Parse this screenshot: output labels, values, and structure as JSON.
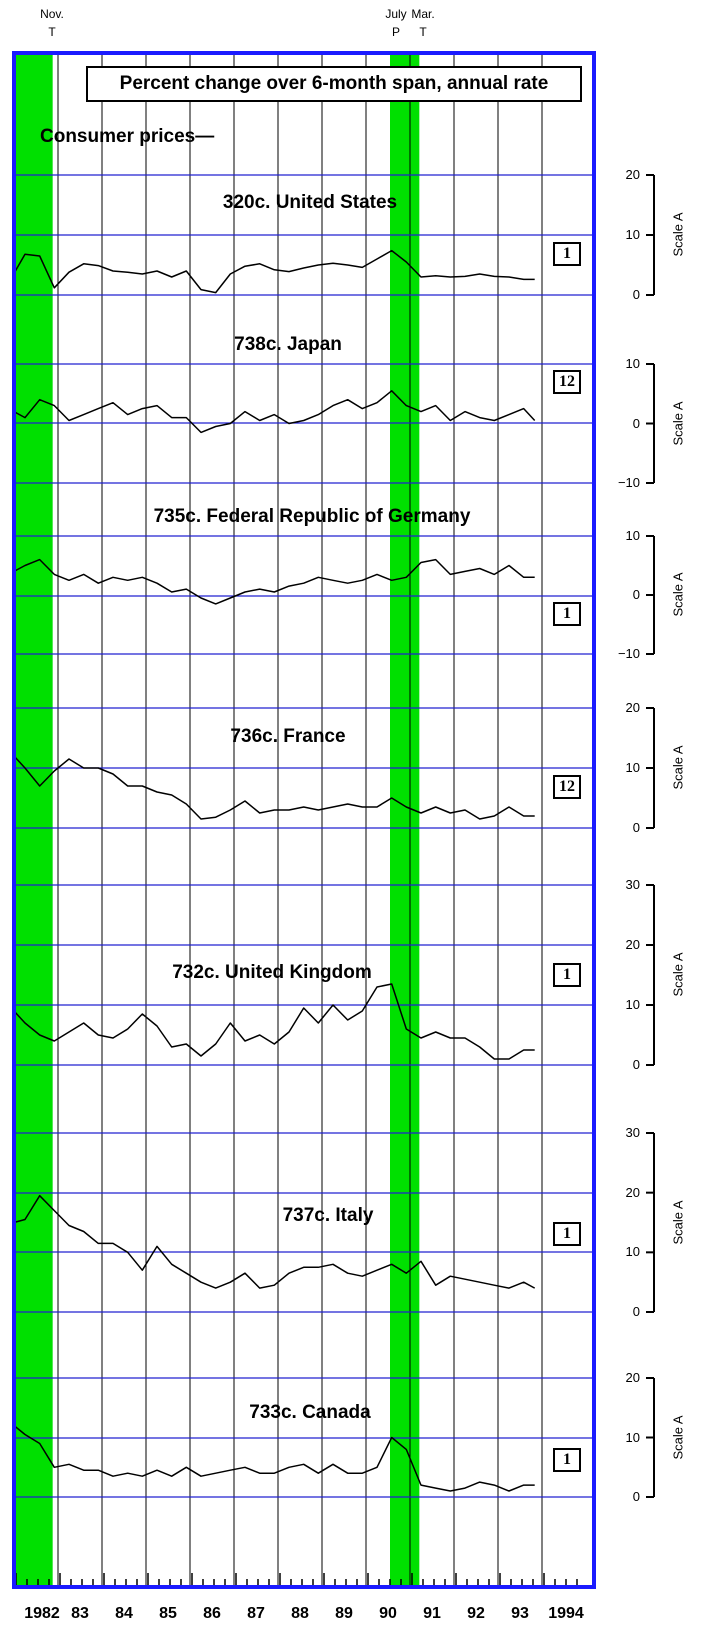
{
  "header": {
    "turns": [
      {
        "month": "Nov.",
        "type": "T"
      },
      {
        "month": "July",
        "type": "P"
      },
      {
        "month": "Mar.",
        "type": "T"
      }
    ]
  },
  "title": "Percent change over 6-month span, annual rate",
  "subtitle": "Consumer prices—",
  "colors": {
    "frame": "#1a1aff",
    "recession": "#00e000",
    "grid": "#2020d0",
    "line": "#000000"
  },
  "chart_data": {
    "type": "line",
    "x_range": [
      "1982-01",
      "1994-12"
    ],
    "x_tick_labels": [
      "1982",
      "83",
      "84",
      "85",
      "86",
      "87",
      "88",
      "89",
      "90",
      "91",
      "92",
      "93",
      "1994"
    ],
    "recessions": [
      [
        "1982-01",
        "1982-11"
      ],
      [
        "1990-07",
        "1991-03"
      ]
    ],
    "scale_label": "Scale A",
    "panels": [
      {
        "title": "320c. United States",
        "badge": "1",
        "ylim": [
          0,
          20
        ],
        "yticks": [
          "20",
          "10",
          "0"
        ],
        "x": [
          "1982-01",
          "1982-04",
          "1982-08",
          "1982-12",
          "1983-04",
          "1983-08",
          "1983-12",
          "1984-04",
          "1984-08",
          "1984-12",
          "1985-04",
          "1985-08",
          "1985-12",
          "1986-04",
          "1986-08",
          "1986-12",
          "1987-04",
          "1987-08",
          "1987-12",
          "1988-04",
          "1988-08",
          "1988-12",
          "1989-04",
          "1989-08",
          "1989-12",
          "1990-04",
          "1990-08",
          "1990-12",
          "1991-04",
          "1991-08",
          "1991-12",
          "1992-04",
          "1992-08",
          "1992-12",
          "1993-04",
          "1993-08",
          "1993-11"
        ],
        "values": [
          3.6,
          6.8,
          6.5,
          1.2,
          3.8,
          5.2,
          4.9,
          4.0,
          3.8,
          3.5,
          4.0,
          3.0,
          4.0,
          0.9,
          0.4,
          3.5,
          4.8,
          5.2,
          4.2,
          3.9,
          4.5,
          5.0,
          5.3,
          5.0,
          4.6,
          6.0,
          7.4,
          5.5,
          3.0,
          3.2,
          3.0,
          3.1,
          3.5,
          3.1,
          3.0,
          2.6,
          2.6
        ]
      },
      {
        "title": "738c. Japan",
        "badge": "12",
        "ylim": [
          -10,
          10
        ],
        "yticks": [
          "10",
          "0",
          "−10"
        ],
        "x": [
          "1982-01",
          "1982-04",
          "1982-08",
          "1982-12",
          "1983-04",
          "1983-08",
          "1983-12",
          "1984-04",
          "1984-08",
          "1984-12",
          "1985-04",
          "1985-08",
          "1985-12",
          "1986-04",
          "1986-08",
          "1986-12",
          "1987-04",
          "1987-08",
          "1987-12",
          "1988-04",
          "1988-08",
          "1988-12",
          "1989-04",
          "1989-08",
          "1989-12",
          "1990-04",
          "1990-08",
          "1990-12",
          "1991-04",
          "1991-08",
          "1991-12",
          "1992-04",
          "1992-08",
          "1992-12",
          "1993-04",
          "1993-08",
          "1993-11"
        ],
        "values": [
          2.0,
          1.0,
          4.0,
          3.0,
          0.5,
          1.5,
          2.5,
          3.5,
          1.5,
          2.5,
          3.0,
          1.0,
          1.0,
          -1.5,
          -0.5,
          0.0,
          2.0,
          0.5,
          1.5,
          0.0,
          0.5,
          1.5,
          3.0,
          4.0,
          2.5,
          3.5,
          5.5,
          3.0,
          2.0,
          3.0,
          0.5,
          2.0,
          1.0,
          0.5,
          1.5,
          2.5,
          0.5
        ]
      },
      {
        "title": "735c. Federal Republic of Germany",
        "badge": "1",
        "ylim": [
          -10,
          10
        ],
        "yticks": [
          "10",
          "0",
          "−10"
        ],
        "x": [
          "1982-01",
          "1982-04",
          "1982-08",
          "1982-12",
          "1983-04",
          "1983-08",
          "1983-12",
          "1984-04",
          "1984-08",
          "1984-12",
          "1985-04",
          "1985-08",
          "1985-12",
          "1986-04",
          "1986-08",
          "1986-12",
          "1987-04",
          "1987-08",
          "1987-12",
          "1988-04",
          "1988-08",
          "1988-12",
          "1989-04",
          "1989-08",
          "1989-12",
          "1990-04",
          "1990-08",
          "1990-12",
          "1991-04",
          "1991-08",
          "1991-12",
          "1992-04",
          "1992-08",
          "1992-12",
          "1993-04",
          "1993-08",
          "1993-11"
        ],
        "values": [
          4.0,
          5.0,
          6.0,
          3.5,
          2.5,
          3.5,
          2.0,
          3.0,
          2.5,
          3.0,
          2.0,
          0.5,
          1.0,
          -0.5,
          -1.5,
          -0.5,
          0.5,
          1.0,
          0.5,
          1.5,
          2.0,
          3.0,
          2.5,
          2.0,
          2.5,
          3.5,
          2.5,
          3.0,
          5.5,
          6.0,
          3.5,
          4.0,
          4.5,
          3.5,
          5.0,
          3.0,
          3.0
        ]
      },
      {
        "title": "736c. France",
        "badge": "12",
        "ylim": [
          0,
          20
        ],
        "yticks": [
          "20",
          "10",
          "0"
        ],
        "x": [
          "1982-01",
          "1982-04",
          "1982-08",
          "1982-12",
          "1983-04",
          "1983-08",
          "1983-12",
          "1984-04",
          "1984-08",
          "1984-12",
          "1985-04",
          "1985-08",
          "1985-12",
          "1986-04",
          "1986-08",
          "1986-12",
          "1987-04",
          "1987-08",
          "1987-12",
          "1988-04",
          "1988-08",
          "1988-12",
          "1989-04",
          "1989-08",
          "1989-12",
          "1990-04",
          "1990-08",
          "1990-12",
          "1991-04",
          "1991-08",
          "1991-12",
          "1992-04",
          "1992-08",
          "1992-12",
          "1993-04",
          "1993-08",
          "1993-11"
        ],
        "values": [
          12.0,
          10.0,
          7.0,
          9.5,
          11.5,
          10.0,
          10.0,
          9.0,
          7.0,
          7.0,
          6.0,
          5.5,
          4.0,
          1.5,
          1.8,
          3.0,
          4.5,
          2.5,
          3.0,
          3.0,
          3.5,
          3.0,
          3.5,
          4.0,
          3.5,
          3.5,
          5.0,
          3.5,
          2.5,
          3.5,
          2.5,
          3.0,
          1.5,
          2.0,
          3.5,
          2.0,
          2.0
        ]
      },
      {
        "title": "732c. United Kingdom",
        "badge": "1",
        "ylim": [
          0,
          30
        ],
        "yticks": [
          "30",
          "20",
          "10",
          "0"
        ],
        "x": [
          "1982-01",
          "1982-04",
          "1982-08",
          "1982-12",
          "1983-04",
          "1983-08",
          "1983-12",
          "1984-04",
          "1984-08",
          "1984-12",
          "1985-04",
          "1985-08",
          "1985-12",
          "1986-04",
          "1986-08",
          "1986-12",
          "1987-04",
          "1987-08",
          "1987-12",
          "1988-04",
          "1988-08",
          "1988-12",
          "1989-04",
          "1989-08",
          "1989-12",
          "1990-04",
          "1990-08",
          "1990-12",
          "1991-04",
          "1991-08",
          "1991-12",
          "1992-04",
          "1992-08",
          "1992-12",
          "1993-04",
          "1993-08",
          "1993-11"
        ],
        "values": [
          9.0,
          7.0,
          5.0,
          4.0,
          5.5,
          7.0,
          5.0,
          4.5,
          6.0,
          8.5,
          6.5,
          3.0,
          3.5,
          1.5,
          3.5,
          7.0,
          4.0,
          5.0,
          3.5,
          5.5,
          9.5,
          7.0,
          10.0,
          7.5,
          9.0,
          13.0,
          13.5,
          6.0,
          4.5,
          5.5,
          4.5,
          4.5,
          3.0,
          1.0,
          1.0,
          2.5,
          2.5
        ]
      },
      {
        "title": "737c. Italy",
        "badge": "1",
        "ylim": [
          0,
          30
        ],
        "yticks": [
          "30",
          "20",
          "10",
          "0"
        ],
        "x": [
          "1982-01",
          "1982-04",
          "1982-08",
          "1982-12",
          "1983-04",
          "1983-08",
          "1983-12",
          "1984-04",
          "1984-08",
          "1984-12",
          "1985-04",
          "1985-08",
          "1985-12",
          "1986-04",
          "1986-08",
          "1986-12",
          "1987-04",
          "1987-08",
          "1987-12",
          "1988-04",
          "1988-08",
          "1988-12",
          "1989-04",
          "1989-08",
          "1989-12",
          "1990-04",
          "1990-08",
          "1990-12",
          "1991-04",
          "1991-08",
          "1991-12",
          "1992-04",
          "1992-08",
          "1992-12",
          "1993-04",
          "1993-08",
          "1993-11"
        ],
        "values": [
          15.0,
          15.5,
          19.5,
          17.0,
          14.5,
          13.5,
          11.5,
          11.5,
          10.0,
          7.0,
          11.0,
          8.0,
          6.5,
          5.0,
          4.0,
          5.0,
          6.5,
          4.0,
          4.5,
          6.5,
          7.5,
          7.5,
          8.0,
          6.5,
          6.0,
          7.0,
          8.0,
          6.5,
          8.5,
          4.5,
          6.0,
          5.5,
          5.0,
          4.5,
          4.0,
          5.0,
          4.0
        ]
      },
      {
        "title": "733c. Canada",
        "badge": "1",
        "ylim": [
          0,
          20
        ],
        "yticks": [
          "20",
          "10",
          "0"
        ],
        "x": [
          "1982-01",
          "1982-04",
          "1982-08",
          "1982-12",
          "1983-04",
          "1983-08",
          "1983-12",
          "1984-04",
          "1984-08",
          "1984-12",
          "1985-04",
          "1985-08",
          "1985-12",
          "1986-04",
          "1986-08",
          "1986-12",
          "1987-04",
          "1987-08",
          "1987-12",
          "1988-04",
          "1988-08",
          "1988-12",
          "1989-04",
          "1989-08",
          "1989-12",
          "1990-04",
          "1990-08",
          "1990-12",
          "1991-04",
          "1991-08",
          "1991-12",
          "1992-04",
          "1992-08",
          "1992-12",
          "1993-04",
          "1993-08",
          "1993-11"
        ],
        "values": [
          12.0,
          10.5,
          9.0,
          5.0,
          5.5,
          4.5,
          4.5,
          3.5,
          4.0,
          3.5,
          4.5,
          3.5,
          5.0,
          3.5,
          4.0,
          4.5,
          5.0,
          4.0,
          4.0,
          5.0,
          5.5,
          4.0,
          5.5,
          4.0,
          4.0,
          5.0,
          10.0,
          8.0,
          2.0,
          1.5,
          1.0,
          1.5,
          2.5,
          2.0,
          1.0,
          2.0,
          2.0
        ]
      }
    ]
  }
}
